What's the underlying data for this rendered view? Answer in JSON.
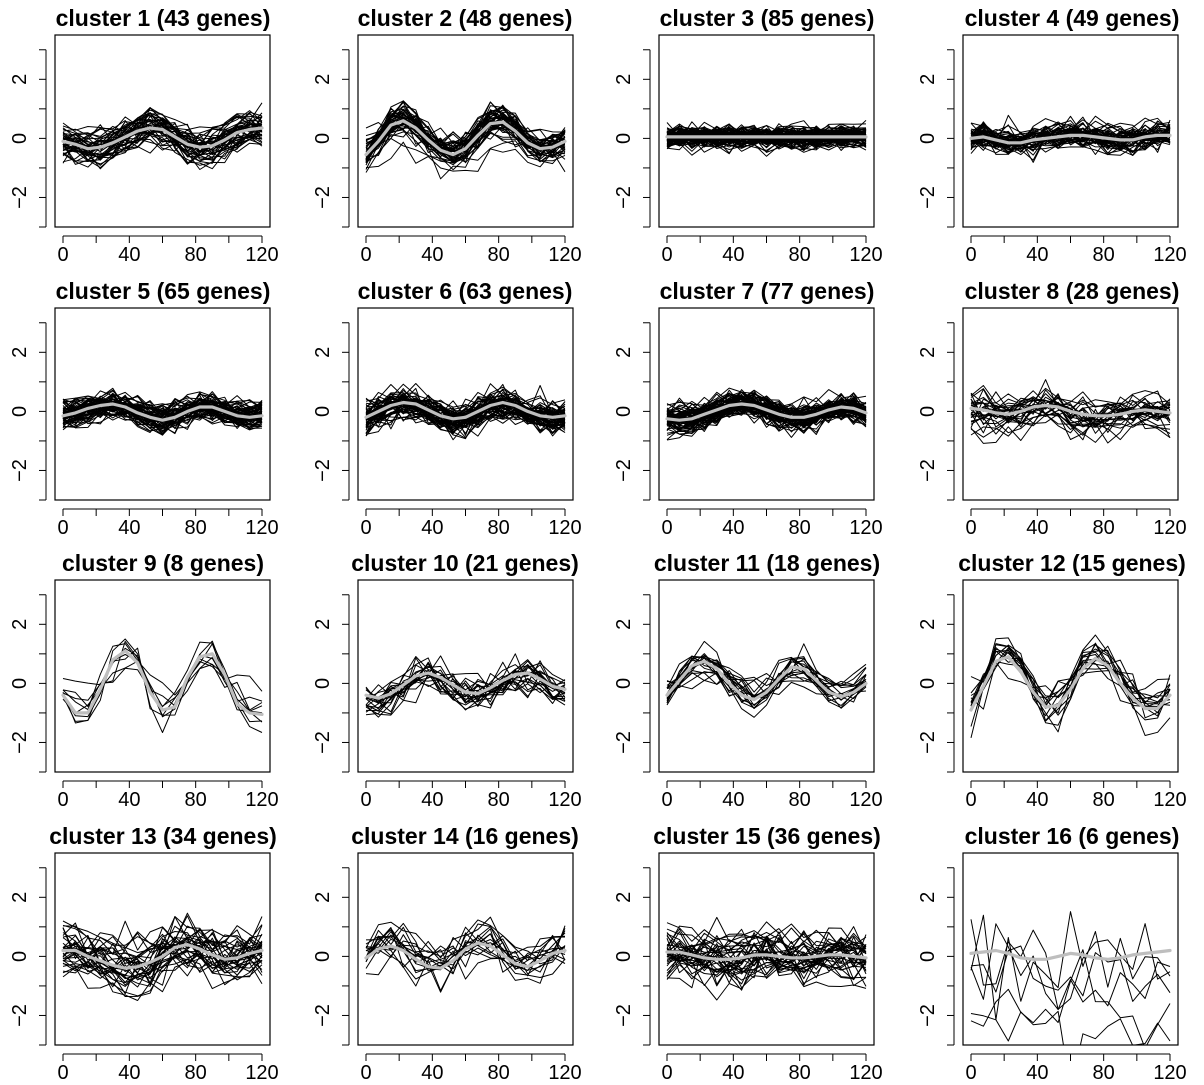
{
  "chart_data": [
    {
      "type": "line",
      "title": "cluster 1 (43 genes)",
      "genes": 43,
      "xlim": [
        0,
        120
      ],
      "ylim": [
        -3,
        3.5
      ],
      "x_ticks": [
        0,
        40,
        80,
        120
      ],
      "y_ticks": [
        -2,
        0,
        2
      ],
      "x": [
        0,
        7.5,
        15,
        22.5,
        30,
        37.5,
        45,
        52.5,
        60,
        67.5,
        75,
        82.5,
        90,
        97.5,
        105,
        112.5,
        120
      ],
      "mean": [
        -0.1,
        -0.2,
        -0.35,
        -0.3,
        -0.15,
        0.05,
        0.25,
        0.35,
        0.3,
        0.05,
        -0.2,
        -0.3,
        -0.25,
        -0.05,
        0.2,
        0.3,
        0.35
      ],
      "spread": 0.45,
      "noise": 0.2
    },
    {
      "type": "line",
      "title": "cluster 2 (48 genes)",
      "genes": 48,
      "xlim": [
        0,
        120
      ],
      "ylim": [
        -3,
        3.5
      ],
      "x_ticks": [
        0,
        40,
        80,
        120
      ],
      "y_ticks": [
        -2,
        0,
        2
      ],
      "x": [
        0,
        7.5,
        15,
        22.5,
        30,
        37.5,
        45,
        52.5,
        60,
        67.5,
        75,
        82.5,
        90,
        97.5,
        105,
        112.5,
        120
      ],
      "mean": [
        -0.55,
        -0.1,
        0.45,
        0.6,
        0.35,
        -0.05,
        -0.4,
        -0.55,
        -0.35,
        0.1,
        0.5,
        0.55,
        0.25,
        -0.15,
        -0.35,
        -0.3,
        -0.1
      ],
      "spread": 0.3,
      "noise": 0.2
    },
    {
      "type": "line",
      "title": "cluster 3 (85 genes)",
      "genes": 85,
      "xlim": [
        0,
        120
      ],
      "ylim": [
        -3,
        3.5
      ],
      "x_ticks": [
        0,
        40,
        80,
        120
      ],
      "y_ticks": [
        -2,
        0,
        2
      ],
      "x": [
        0,
        7.5,
        15,
        22.5,
        30,
        37.5,
        45,
        52.5,
        60,
        67.5,
        75,
        82.5,
        90,
        97.5,
        105,
        112.5,
        120
      ],
      "mean": [
        0.05,
        0.05,
        0.05,
        0.05,
        0.05,
        0.05,
        0.05,
        0.05,
        0.05,
        0.05,
        0.05,
        0.05,
        0.05,
        0.05,
        0.05,
        0.05,
        0.05
      ],
      "spread": 0.15,
      "noise": 0.15
    },
    {
      "type": "line",
      "title": "cluster 4 (49 genes)",
      "genes": 49,
      "xlim": [
        0,
        120
      ],
      "ylim": [
        -3,
        3.5
      ],
      "x_ticks": [
        0,
        40,
        80,
        120
      ],
      "y_ticks": [
        -2,
        0,
        2
      ],
      "x": [
        0,
        7.5,
        15,
        22.5,
        30,
        37.5,
        45,
        52.5,
        60,
        67.5,
        75,
        82.5,
        90,
        97.5,
        105,
        112.5,
        120
      ],
      "mean": [
        0,
        0.05,
        -0.05,
        -0.15,
        -0.15,
        -0.05,
        0,
        0.05,
        0.1,
        0.1,
        0.05,
        0,
        -0.05,
        -0.05,
        0.05,
        0.1,
        0.1
      ],
      "spread": 0.2,
      "noise": 0.2
    },
    {
      "type": "line",
      "title": "cluster 5 (65 genes)",
      "genes": 65,
      "xlim": [
        0,
        120
      ],
      "ylim": [
        -3,
        3.5
      ],
      "x_ticks": [
        0,
        40,
        80,
        120
      ],
      "y_ticks": [
        -2,
        0,
        2
      ],
      "x": [
        0,
        7.5,
        15,
        22.5,
        30,
        37.5,
        45,
        52.5,
        60,
        67.5,
        75,
        82.5,
        90,
        97.5,
        105,
        112.5,
        120
      ],
      "mean": [
        -0.15,
        -0.05,
        0.1,
        0.2,
        0.25,
        0.15,
        -0.05,
        -0.2,
        -0.3,
        -0.2,
        0,
        0.15,
        0.15,
        0,
        -0.15,
        -0.2,
        -0.15
      ],
      "spread": 0.22,
      "noise": 0.18
    },
    {
      "type": "line",
      "title": "cluster 6 (63 genes)",
      "genes": 63,
      "xlim": [
        0,
        120
      ],
      "ylim": [
        -3,
        3.5
      ],
      "x_ticks": [
        0,
        40,
        80,
        120
      ],
      "y_ticks": [
        -2,
        0,
        2
      ],
      "x": [
        0,
        7.5,
        15,
        22.5,
        30,
        37.5,
        45,
        52.5,
        60,
        67.5,
        75,
        82.5,
        90,
        97.5,
        105,
        112.5,
        120
      ],
      "mean": [
        -0.2,
        0,
        0.2,
        0.3,
        0.25,
        0.05,
        -0.15,
        -0.25,
        -0.2,
        0,
        0.2,
        0.3,
        0.2,
        0,
        -0.15,
        -0.2,
        -0.15
      ],
      "spread": 0.25,
      "noise": 0.2
    },
    {
      "type": "line",
      "title": "cluster 7 (77 genes)",
      "genes": 77,
      "xlim": [
        0,
        120
      ],
      "ylim": [
        -3,
        3.5
      ],
      "x_ticks": [
        0,
        40,
        80,
        120
      ],
      "y_ticks": [
        -2,
        0,
        2
      ],
      "x": [
        0,
        7.5,
        15,
        22.5,
        30,
        37.5,
        45,
        52.5,
        60,
        67.5,
        75,
        82.5,
        90,
        97.5,
        105,
        112.5,
        120
      ],
      "mean": [
        -0.25,
        -0.3,
        -0.25,
        -0.1,
        0.05,
        0.2,
        0.25,
        0.2,
        0.05,
        -0.1,
        -0.2,
        -0.2,
        -0.1,
        0.05,
        0.15,
        0.1,
        -0.05
      ],
      "spread": 0.25,
      "noise": 0.18
    },
    {
      "type": "line",
      "title": "cluster 8 (28 genes)",
      "genes": 28,
      "xlim": [
        0,
        120
      ],
      "ylim": [
        -3,
        3.5
      ],
      "x_ticks": [
        0,
        40,
        80,
        120
      ],
      "y_ticks": [
        -2,
        0,
        2
      ],
      "x": [
        0,
        7.5,
        15,
        22.5,
        30,
        37.5,
        45,
        52.5,
        60,
        67.5,
        75,
        82.5,
        90,
        97.5,
        105,
        112.5,
        120
      ],
      "mean": [
        0.1,
        0.05,
        -0.05,
        -0.1,
        0,
        0.15,
        0.2,
        0.15,
        0,
        -0.1,
        -0.15,
        -0.15,
        -0.1,
        0,
        0.05,
        0,
        -0.05
      ],
      "spread": 0.35,
      "noise": 0.25
    },
    {
      "type": "line",
      "title": "cluster 9 (8 genes)",
      "genes": 8,
      "xlim": [
        0,
        120
      ],
      "ylim": [
        -3,
        3.5
      ],
      "x_ticks": [
        0,
        40,
        80,
        120
      ],
      "y_ticks": [
        -2,
        0,
        2
      ],
      "x": [
        0,
        7.5,
        15,
        22.5,
        30,
        37.5,
        45,
        52.5,
        60,
        67.5,
        75,
        82.5,
        90,
        97.5,
        105,
        112.5,
        120
      ],
      "mean": [
        -0.4,
        -1,
        -1,
        -0.2,
        0.8,
        1.1,
        0.7,
        -0.3,
        -0.9,
        -0.8,
        0.2,
        0.9,
        1,
        0.3,
        -0.7,
        -1,
        -1.05
      ],
      "spread": 0.3,
      "noise": 0.2
    },
    {
      "type": "line",
      "title": "cluster 10 (21 genes)",
      "genes": 21,
      "xlim": [
        0,
        120
      ],
      "ylim": [
        -3,
        3.5
      ],
      "x_ticks": [
        0,
        40,
        80,
        120
      ],
      "y_ticks": [
        -2,
        0,
        2
      ],
      "x": [
        0,
        7.5,
        15,
        22.5,
        30,
        37.5,
        45,
        52.5,
        60,
        67.5,
        75,
        82.5,
        90,
        97.5,
        105,
        112.5,
        120
      ],
      "mean": [
        -0.4,
        -0.5,
        -0.35,
        -0.05,
        0.25,
        0.35,
        0.2,
        -0.05,
        -0.3,
        -0.35,
        -0.15,
        0.1,
        0.3,
        0.35,
        0.15,
        -0.1,
        -0.2
      ],
      "spread": 0.4,
      "noise": 0.25
    },
    {
      "type": "line",
      "title": "cluster 11 (18 genes)",
      "genes": 18,
      "xlim": [
        0,
        120
      ],
      "ylim": [
        -3,
        3.5
      ],
      "x_ticks": [
        0,
        40,
        80,
        120
      ],
      "y_ticks": [
        -2,
        0,
        2
      ],
      "x": [
        0,
        7.5,
        15,
        22.5,
        30,
        37.5,
        45,
        52.5,
        60,
        67.5,
        75,
        82.5,
        90,
        97.5,
        105,
        112.5,
        120
      ],
      "mean": [
        -0.4,
        0.1,
        0.6,
        0.75,
        0.5,
        0,
        -0.4,
        -0.55,
        -0.3,
        0.15,
        0.55,
        0.5,
        0.1,
        -0.3,
        -0.45,
        -0.3,
        0
      ],
      "spread": 0.25,
      "noise": 0.18
    },
    {
      "type": "line",
      "title": "cluster 12 (15 genes)",
      "genes": 15,
      "xlim": [
        0,
        120
      ],
      "ylim": [
        -3,
        3.5
      ],
      "x_ticks": [
        0,
        40,
        80,
        120
      ],
      "y_ticks": [
        -2,
        0,
        2
      ],
      "x": [
        0,
        7.5,
        15,
        22.5,
        30,
        37.5,
        45,
        52.5,
        60,
        67.5,
        75,
        82.5,
        90,
        97.5,
        105,
        112.5,
        120
      ],
      "mean": [
        -0.9,
        -0.1,
        0.75,
        0.9,
        0.4,
        -0.3,
        -0.8,
        -0.75,
        -0.2,
        0.5,
        0.85,
        0.6,
        0,
        -0.5,
        -0.85,
        -0.85,
        -0.4
      ],
      "spread": 0.35,
      "noise": 0.25
    },
    {
      "type": "line",
      "title": "cluster 13 (34 genes)",
      "genes": 34,
      "xlim": [
        0,
        120
      ],
      "ylim": [
        -3,
        3.5
      ],
      "x_ticks": [
        0,
        40,
        80,
        120
      ],
      "y_ticks": [
        -2,
        0,
        2
      ],
      "x": [
        0,
        7.5,
        15,
        22.5,
        30,
        37.5,
        45,
        52.5,
        60,
        67.5,
        75,
        82.5,
        90,
        97.5,
        105,
        112.5,
        120
      ],
      "mean": [
        0.2,
        0.2,
        0,
        -0.15,
        -0.3,
        -0.4,
        -0.35,
        -0.2,
        0,
        0.3,
        0.4,
        0.25,
        0.05,
        -0.1,
        -0.05,
        0.1,
        0.2
      ],
      "spread": 0.55,
      "noise": 0.3
    },
    {
      "type": "line",
      "title": "cluster 14 (16 genes)",
      "genes": 16,
      "xlim": [
        0,
        120
      ],
      "ylim": [
        -3,
        3.5
      ],
      "x_ticks": [
        0,
        40,
        80,
        120
      ],
      "y_ticks": [
        -2,
        0,
        2
      ],
      "x": [
        0,
        7.5,
        15,
        22.5,
        30,
        37.5,
        45,
        52.5,
        60,
        67.5,
        75,
        82.5,
        90,
        97.5,
        105,
        112.5,
        120
      ],
      "mean": [
        -0.05,
        0.25,
        0.35,
        0.2,
        -0.1,
        -0.35,
        -0.4,
        -0.15,
        0.25,
        0.45,
        0.35,
        0.05,
        -0.25,
        -0.35,
        -0.15,
        0.1,
        0.2
      ],
      "spread": 0.45,
      "noise": 0.3
    },
    {
      "type": "line",
      "title": "cluster 15 (36 genes)",
      "genes": 36,
      "xlim": [
        0,
        120
      ],
      "ylim": [
        -3,
        3.5
      ],
      "x_ticks": [
        0,
        40,
        80,
        120
      ],
      "y_ticks": [
        -2,
        0,
        2
      ],
      "x": [
        0,
        7.5,
        15,
        22.5,
        30,
        37.5,
        45,
        52.5,
        60,
        67.5,
        75,
        82.5,
        90,
        97.5,
        105,
        112.5,
        120
      ],
      "mean": [
        0.15,
        0.15,
        0.05,
        -0.05,
        -0.1,
        -0.1,
        -0.05,
        0.05,
        0.05,
        0,
        -0.05,
        -0.05,
        0,
        0.05,
        0.05,
        0,
        -0.05
      ],
      "spread": 0.5,
      "noise": 0.3
    },
    {
      "type": "line",
      "title": "cluster 16 (6 genes)",
      "genes": 6,
      "xlim": [
        0,
        120
      ],
      "ylim": [
        -3,
        3.5
      ],
      "x_ticks": [
        0,
        40,
        80,
        120
      ],
      "y_ticks": [
        -2,
        0,
        2
      ],
      "x": [
        0,
        7.5,
        15,
        22.5,
        30,
        37.5,
        45,
        52.5,
        60,
        67.5,
        75,
        82.5,
        90,
        97.5,
        105,
        112.5,
        120
      ],
      "mean": [
        0.1,
        0.15,
        0.2,
        0.1,
        -0.05,
        -0.1,
        -0.1,
        0,
        0.1,
        0.05,
        -0.05,
        -0.1,
        -0.05,
        0.05,
        0.1,
        0.15,
        0.2
      ],
      "spread": 1.3,
      "noise": 0.5
    }
  ]
}
